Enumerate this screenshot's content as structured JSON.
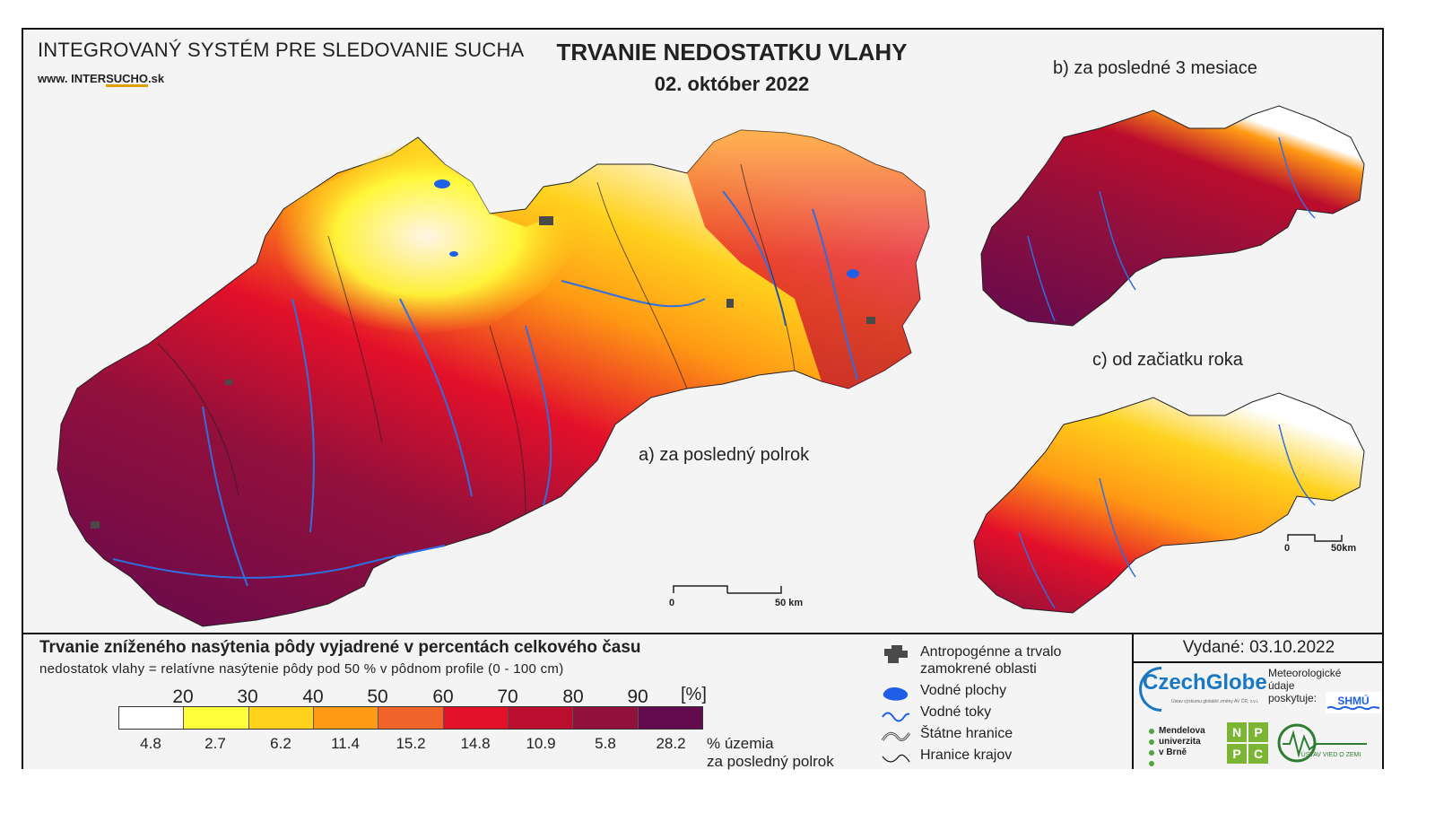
{
  "header": {
    "system_title": "INTEGROVANÝ SYSTÉM PRE SLEDOVANIE SUCHA",
    "url_prefix": "www. INTER",
    "url_brand": "SUCHO",
    "url_suffix": ".sk",
    "title": "TRVANIE NEDOSTATKU VLAHY",
    "date": "02. október 2022"
  },
  "maps": {
    "main_label": "a) za posledný polrok",
    "b_label": "b) za posledné 3 mesiace",
    "c_label": "c) od začiatku roka",
    "main_scale": {
      "start": "0",
      "end": "50 km"
    },
    "small_scale": {
      "start": "0",
      "end": "50km"
    }
  },
  "legend": {
    "title": "Trvanie zníženého nasýtenia pôdy vyjadrené v percentách celkového času",
    "subtitle": "nedostatok vlahy = relatívne nasýtenie pôdy pod 50 % v pôdnom profile (0 - 100 cm)",
    "thresholds": [
      "20",
      "30",
      "40",
      "50",
      "60",
      "70",
      "80",
      "90"
    ],
    "unit": "[%]",
    "colors": [
      "#ffffff",
      "#ffff3c",
      "#ffd21e",
      "#ff9a14",
      "#f0642a",
      "#e3102a",
      "#bb0d2d",
      "#92103c",
      "#640a4e"
    ],
    "percentages": [
      "4.8",
      "2.7",
      "6.2",
      "11.4",
      "15.2",
      "14.8",
      "10.9",
      "5.8",
      "28.2"
    ],
    "percent_note_line1": "% územia",
    "percent_note_line2": "za posledný polrok"
  },
  "symbols": {
    "anthropogenic": "Antropogénne a trvalo zamokrené oblasti",
    "anthropogenic_line1": "Antropogénne a trvalo",
    "anthropogenic_line2": "zamokrené oblasti",
    "water_areas": "Vodné plochy",
    "water_streams": "Vodné toky",
    "state_border": "Štátne hranice",
    "region_border": "Hranice krajov"
  },
  "issued": {
    "text": "Vydané: 03.10.2022"
  },
  "logos": {
    "czechglobe": "CzechGlobe",
    "czechglobe_sub": "Ústav výzkumu globální změny AV ČR, v.v.i.",
    "meteo_line1": "Meteorologické",
    "meteo_line2": "údaje",
    "meteo_line3": "poskytuje:",
    "shmu": "SHMÚ",
    "mendel_line1": "Mendelova",
    "mendel_line2": "univerzita",
    "mendel_line3": "v Brně",
    "npc": [
      "N",
      "P",
      "P",
      "C"
    ],
    "usz": "ÚSTAV VIED O ZEMI"
  }
}
